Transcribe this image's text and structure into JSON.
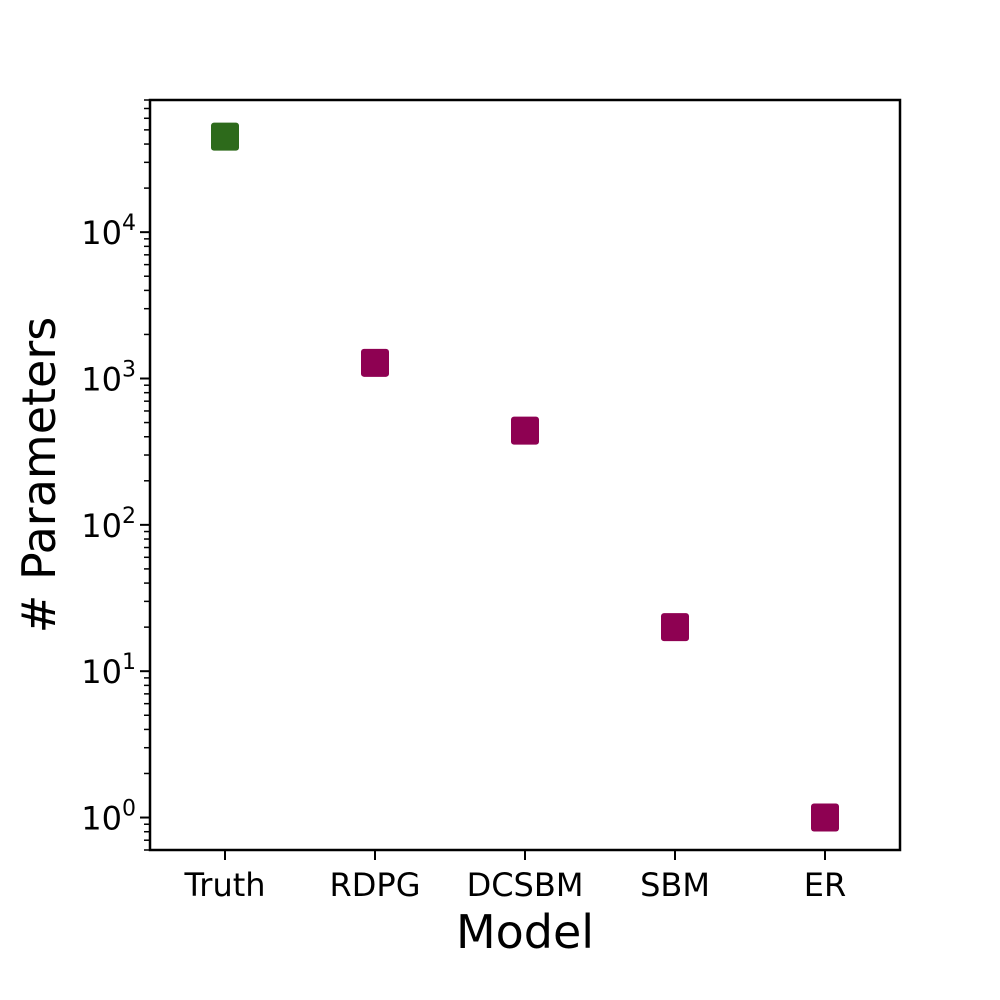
{
  "chart_data": {
    "type": "scatter",
    "title": "",
    "xlabel": "Model",
    "ylabel": "# Parameters",
    "yscale": "log",
    "ylim": [
      0.6,
      80000
    ],
    "categories": [
      "Truth",
      "RDPG",
      "DCSBM",
      "SBM",
      "ER"
    ],
    "values": [
      45000,
      1280,
      440,
      20,
      1
    ],
    "point_colors": [
      "#2d6a1b",
      "#8e0152",
      "#8e0152",
      "#8e0152",
      "#8e0152"
    ],
    "marker": "square",
    "yticks": [
      {
        "base": "10",
        "exp": "0",
        "value": 1
      },
      {
        "base": "10",
        "exp": "1",
        "value": 10
      },
      {
        "base": "10",
        "exp": "2",
        "value": 100
      },
      {
        "base": "10",
        "exp": "3",
        "value": 1000
      },
      {
        "base": "10",
        "exp": "4",
        "value": 10000
      }
    ],
    "grid": false,
    "legend": "none"
  }
}
